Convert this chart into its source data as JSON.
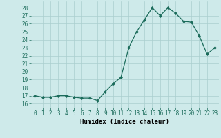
{
  "x": [
    0,
    1,
    2,
    3,
    4,
    5,
    6,
    7,
    8,
    9,
    10,
    11,
    12,
    13,
    14,
    15,
    16,
    17,
    18,
    19,
    20,
    21,
    22,
    23
  ],
  "y": [
    17.0,
    16.8,
    16.8,
    17.0,
    17.0,
    16.8,
    16.7,
    16.7,
    16.4,
    17.5,
    18.5,
    19.3,
    23.0,
    25.0,
    26.5,
    28.0,
    27.0,
    28.0,
    27.3,
    26.3,
    26.2,
    24.5,
    22.2,
    23.0
  ],
  "xlabel": "Humidex (Indice chaleur)",
  "ylabel_ticks": [
    16,
    17,
    18,
    19,
    20,
    21,
    22,
    23,
    24,
    25,
    26,
    27,
    28
  ],
  "ylim": [
    15.5,
    28.8
  ],
  "xlim": [
    -0.5,
    23.5
  ],
  "bg_color": "#ceeaea",
  "grid_color": "#aacece",
  "line_color": "#1a6b5a",
  "marker_color": "#1a6b5a",
  "tick_fontsize": 5.5,
  "xlabel_fontsize": 6.5
}
